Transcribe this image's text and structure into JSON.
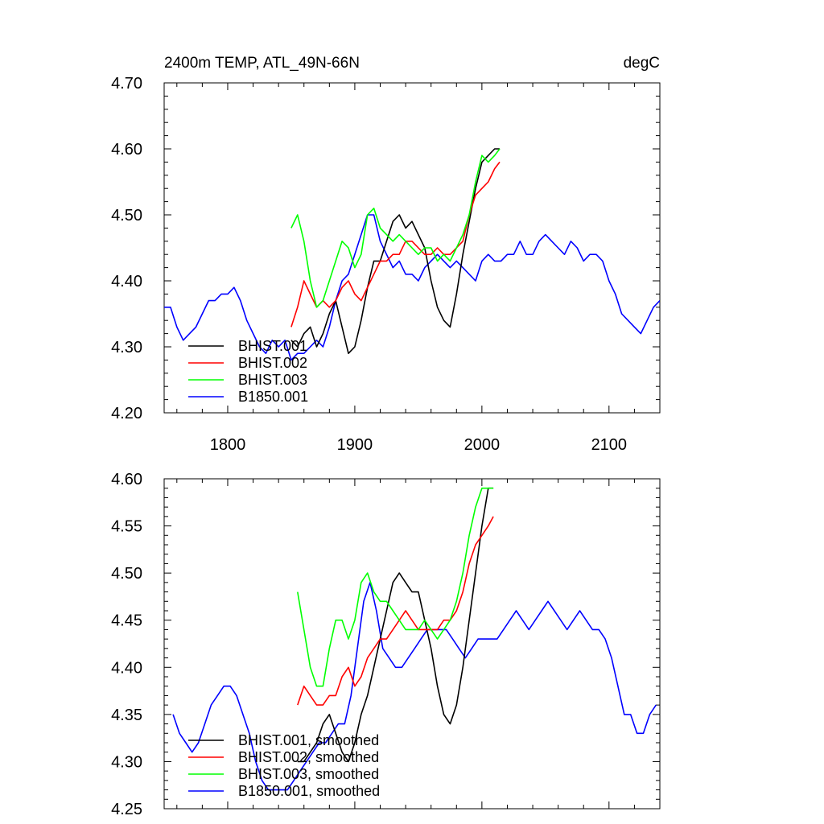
{
  "chart_data": [
    {
      "type": "line",
      "title": "2400m TEMP, ATL_49N-66N",
      "units_label": "degC",
      "xlim": [
        1750,
        2140
      ],
      "ylim": [
        4.2,
        4.7
      ],
      "x_ticks": [
        1800,
        1900,
        2000,
        2100
      ],
      "x_tick_labels": [
        "1800",
        "1900",
        "2000",
        "2100"
      ],
      "y_ticks": [
        4.2,
        4.3,
        4.4,
        4.5,
        4.6,
        4.7
      ],
      "y_tick_labels": [
        "4.20",
        "4.30",
        "4.40",
        "4.50",
        "4.60",
        "4.70"
      ],
      "legend_position": "bottom-left",
      "series": [
        {
          "name": "BHIST.001",
          "color": "#000000",
          "x": [
            1850,
            1855,
            1860,
            1865,
            1870,
            1875,
            1880,
            1885,
            1890,
            1895,
            1900,
            1905,
            1910,
            1915,
            1920,
            1925,
            1930,
            1935,
            1940,
            1945,
            1950,
            1955,
            1960,
            1965,
            1970,
            1975,
            1980,
            1985,
            1990,
            1995,
            2000,
            2005,
            2010,
            2014
          ],
          "y": [
            4.31,
            4.3,
            4.32,
            4.33,
            4.3,
            4.32,
            4.35,
            4.37,
            4.33,
            4.29,
            4.3,
            4.34,
            4.39,
            4.43,
            4.43,
            4.46,
            4.49,
            4.5,
            4.48,
            4.49,
            4.47,
            4.45,
            4.4,
            4.36,
            4.34,
            4.33,
            4.38,
            4.44,
            4.49,
            4.54,
            4.58,
            4.59,
            4.6,
            4.6
          ]
        },
        {
          "name": "BHIST.002",
          "color": "#ff0000",
          "x": [
            1850,
            1855,
            1860,
            1865,
            1870,
            1875,
            1880,
            1885,
            1890,
            1895,
            1900,
            1905,
            1910,
            1915,
            1920,
            1925,
            1930,
            1935,
            1940,
            1945,
            1950,
            1955,
            1960,
            1965,
            1970,
            1975,
            1980,
            1985,
            1990,
            1995,
            2000,
            2005,
            2010,
            2014
          ],
          "y": [
            4.33,
            4.36,
            4.4,
            4.38,
            4.36,
            4.37,
            4.36,
            4.37,
            4.39,
            4.4,
            4.38,
            4.37,
            4.39,
            4.41,
            4.43,
            4.43,
            4.44,
            4.44,
            4.46,
            4.46,
            4.45,
            4.44,
            4.44,
            4.45,
            4.44,
            4.44,
            4.45,
            4.46,
            4.5,
            4.53,
            4.54,
            4.55,
            4.57,
            4.58
          ]
        },
        {
          "name": "BHIST.003",
          "color": "#00ff00",
          "x": [
            1850,
            1855,
            1860,
            1865,
            1870,
            1875,
            1880,
            1885,
            1890,
            1895,
            1900,
            1905,
            1910,
            1915,
            1920,
            1925,
            1930,
            1935,
            1940,
            1945,
            1950,
            1955,
            1960,
            1965,
            1970,
            1975,
            1980,
            1985,
            1990,
            1995,
            2000,
            2005,
            2010,
            2014
          ],
          "y": [
            4.48,
            4.5,
            4.46,
            4.4,
            4.36,
            4.37,
            4.4,
            4.43,
            4.46,
            4.45,
            4.42,
            4.44,
            4.5,
            4.51,
            4.48,
            4.47,
            4.46,
            4.47,
            4.46,
            4.45,
            4.44,
            4.45,
            4.45,
            4.43,
            4.44,
            4.43,
            4.45,
            4.47,
            4.5,
            4.55,
            4.59,
            4.58,
            4.59,
            4.6
          ]
        },
        {
          "name": "B1850.001",
          "color": "#0000ff",
          "x": [
            1750,
            1755,
            1760,
            1765,
            1770,
            1775,
            1780,
            1785,
            1790,
            1795,
            1800,
            1805,
            1810,
            1815,
            1820,
            1825,
            1830,
            1835,
            1840,
            1845,
            1850,
            1855,
            1860,
            1865,
            1870,
            1875,
            1880,
            1885,
            1890,
            1895,
            1900,
            1905,
            1910,
            1915,
            1920,
            1925,
            1930,
            1935,
            1940,
            1945,
            1950,
            1955,
            1960,
            1965,
            1970,
            1975,
            1980,
            1985,
            1990,
            1995,
            2000,
            2005,
            2010,
            2015,
            2020,
            2025,
            2030,
            2035,
            2040,
            2045,
            2050,
            2055,
            2060,
            2065,
            2070,
            2075,
            2080,
            2085,
            2090,
            2095,
            2100,
            2105,
            2110,
            2115,
            2120,
            2125,
            2130,
            2135,
            2140
          ],
          "y": [
            4.36,
            4.36,
            4.33,
            4.31,
            4.32,
            4.33,
            4.35,
            4.37,
            4.37,
            4.38,
            4.38,
            4.39,
            4.37,
            4.34,
            4.32,
            4.3,
            4.29,
            4.31,
            4.3,
            4.31,
            4.28,
            4.29,
            4.29,
            4.3,
            4.31,
            4.3,
            4.33,
            4.37,
            4.4,
            4.41,
            4.44,
            4.47,
            4.5,
            4.5,
            4.46,
            4.44,
            4.42,
            4.43,
            4.41,
            4.41,
            4.4,
            4.42,
            4.43,
            4.44,
            4.43,
            4.42,
            4.43,
            4.42,
            4.41,
            4.4,
            4.43,
            4.44,
            4.43,
            4.43,
            4.44,
            4.44,
            4.46,
            4.44,
            4.44,
            4.46,
            4.47,
            4.46,
            4.45,
            4.44,
            4.46,
            4.45,
            4.43,
            4.44,
            4.44,
            4.43,
            4.4,
            4.38,
            4.35,
            4.34,
            4.33,
            4.32,
            4.34,
            4.36,
            4.37
          ]
        }
      ]
    },
    {
      "type": "line",
      "xlim": [
        1750,
        2140
      ],
      "ylim": [
        4.25,
        4.6
      ],
      "x_ticks": [
        1800,
        1900,
        2000,
        2100
      ],
      "y_ticks": [
        4.25,
        4.3,
        4.35,
        4.4,
        4.45,
        4.5,
        4.55,
        4.6
      ],
      "y_tick_labels": [
        "4.25",
        "4.30",
        "4.35",
        "4.40",
        "4.45",
        "4.50",
        "4.55",
        "4.60"
      ],
      "legend_position": "bottom-left",
      "series": [
        {
          "name": "BHIST.001, smoothed",
          "color": "#000000",
          "x": [
            1855,
            1860,
            1865,
            1870,
            1875,
            1880,
            1885,
            1890,
            1895,
            1900,
            1905,
            1910,
            1915,
            1920,
            1925,
            1930,
            1935,
            1940,
            1945,
            1950,
            1955,
            1960,
            1965,
            1970,
            1975,
            1980,
            1985,
            1990,
            1995,
            2000,
            2005,
            2009
          ],
          "y": [
            4.3,
            4.3,
            4.31,
            4.32,
            4.34,
            4.35,
            4.33,
            4.31,
            4.3,
            4.32,
            4.35,
            4.37,
            4.4,
            4.43,
            4.46,
            4.49,
            4.5,
            4.49,
            4.48,
            4.48,
            4.45,
            4.42,
            4.38,
            4.35,
            4.34,
            4.36,
            4.4,
            4.45,
            4.5,
            4.55,
            4.59,
            4.59
          ]
        },
        {
          "name": "BHIST.002, smoothed",
          "color": "#ff0000",
          "x": [
            1855,
            1860,
            1865,
            1870,
            1875,
            1880,
            1885,
            1890,
            1895,
            1900,
            1905,
            1910,
            1915,
            1920,
            1925,
            1930,
            1935,
            1940,
            1945,
            1950,
            1955,
            1960,
            1965,
            1970,
            1975,
            1980,
            1985,
            1990,
            1995,
            2000,
            2005,
            2009
          ],
          "y": [
            4.36,
            4.38,
            4.37,
            4.36,
            4.36,
            4.37,
            4.37,
            4.39,
            4.4,
            4.38,
            4.39,
            4.41,
            4.42,
            4.43,
            4.43,
            4.44,
            4.45,
            4.46,
            4.45,
            4.44,
            4.44,
            4.44,
            4.44,
            4.45,
            4.45,
            4.46,
            4.48,
            4.51,
            4.53,
            4.54,
            4.55,
            4.56
          ]
        },
        {
          "name": "BHIST.003, smoothed",
          "color": "#00ff00",
          "x": [
            1855,
            1860,
            1865,
            1870,
            1875,
            1880,
            1885,
            1890,
            1895,
            1900,
            1905,
            1910,
            1915,
            1920,
            1925,
            1930,
            1935,
            1940,
            1945,
            1950,
            1955,
            1960,
            1965,
            1970,
            1975,
            1980,
            1985,
            1990,
            1995,
            2000,
            2005,
            2009
          ],
          "y": [
            4.48,
            4.44,
            4.4,
            4.38,
            4.38,
            4.42,
            4.45,
            4.45,
            4.43,
            4.45,
            4.49,
            4.5,
            4.48,
            4.47,
            4.47,
            4.46,
            4.45,
            4.44,
            4.44,
            4.44,
            4.45,
            4.44,
            4.43,
            4.44,
            4.45,
            4.47,
            4.5,
            4.54,
            4.57,
            4.59,
            4.59,
            4.59
          ]
        },
        {
          "name": "B1850.001, smoothed",
          "color": "#0000ff",
          "x": [
            1757,
            1762,
            1767,
            1772,
            1777,
            1782,
            1787,
            1792,
            1797,
            1802,
            1807,
            1812,
            1817,
            1822,
            1827,
            1832,
            1837,
            1842,
            1847,
            1852,
            1857,
            1862,
            1867,
            1872,
            1877,
            1882,
            1887,
            1892,
            1897,
            1902,
            1907,
            1912,
            1917,
            1922,
            1927,
            1932,
            1937,
            1942,
            1947,
            1952,
            1957,
            1962,
            1967,
            1972,
            1977,
            1982,
            1987,
            1992,
            1997,
            2002,
            2007,
            2012,
            2017,
            2022,
            2027,
            2032,
            2037,
            2042,
            2047,
            2052,
            2057,
            2062,
            2067,
            2072,
            2077,
            2082,
            2087,
            2092,
            2097,
            2102,
            2107,
            2112,
            2117,
            2122,
            2127,
            2132,
            2137
          ],
          "y": [
            4.35,
            4.33,
            4.32,
            4.31,
            4.32,
            4.34,
            4.36,
            4.37,
            4.38,
            4.38,
            4.37,
            4.35,
            4.33,
            4.3,
            4.28,
            4.27,
            4.27,
            4.27,
            4.27,
            4.28,
            4.29,
            4.3,
            4.31,
            4.32,
            4.32,
            4.33,
            4.34,
            4.34,
            4.37,
            4.42,
            4.47,
            4.49,
            4.46,
            4.42,
            4.41,
            4.4,
            4.4,
            4.41,
            4.42,
            4.43,
            4.44,
            4.44,
            4.44,
            4.44,
            4.43,
            4.42,
            4.41,
            4.42,
            4.43,
            4.43,
            4.43,
            4.43,
            4.44,
            4.45,
            4.46,
            4.45,
            4.44,
            4.45,
            4.46,
            4.47,
            4.46,
            4.45,
            4.44,
            4.45,
            4.46,
            4.45,
            4.44,
            4.44,
            4.43,
            4.41,
            4.38,
            4.35,
            4.35,
            4.33,
            4.33,
            4.35,
            4.36
          ]
        }
      ]
    }
  ]
}
